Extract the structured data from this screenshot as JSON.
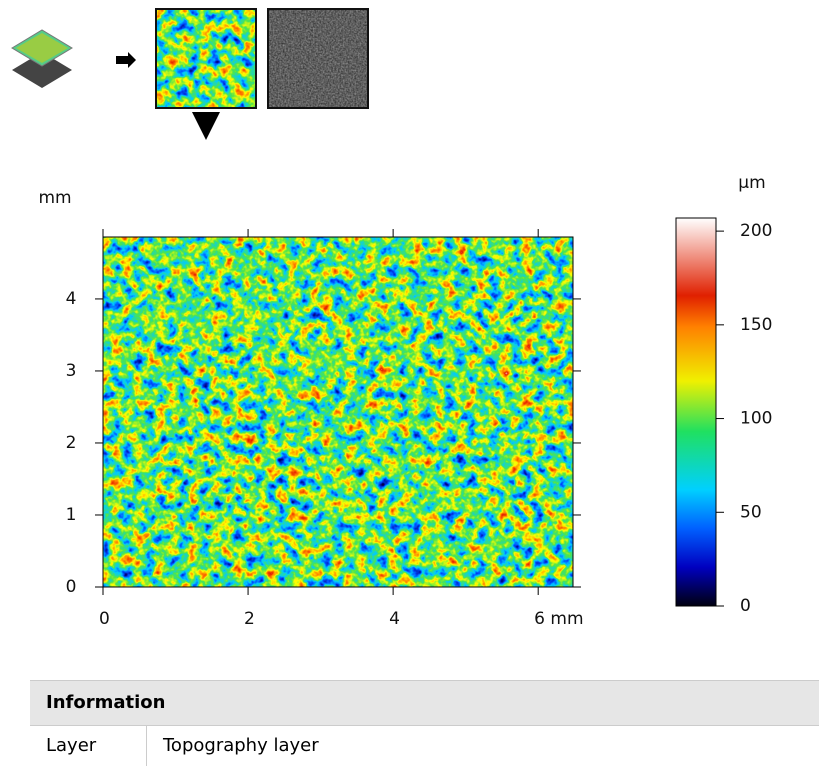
{
  "chart_data": {
    "type": "heatmap",
    "y_label": "mm",
    "xlim": [
      0,
      6.48
    ],
    "ylim": [
      0,
      4.86
    ],
    "xticks": [
      0,
      2,
      4,
      {
        "value": 6,
        "label": "6 mm"
      }
    ],
    "yticks": [
      0,
      1,
      2,
      3,
      4
    ],
    "colorbar": {
      "label": "µm",
      "lim": [
        0,
        207
      ],
      "ticks": [
        0,
        50,
        100,
        150,
        200
      ]
    }
  },
  "table": {
    "title": "Information",
    "rows": [
      [
        "Layer",
        "Topography layer"
      ]
    ]
  }
}
